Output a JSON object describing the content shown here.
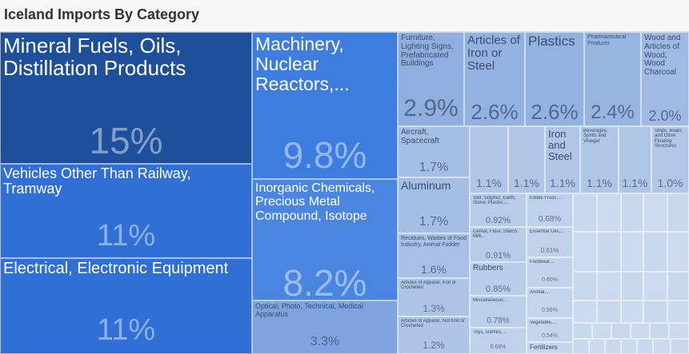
{
  "title": "Iceland Imports By Category",
  "chart_data": {
    "type": "treemap",
    "title": "Iceland Imports By Category",
    "unit": "% of total imports",
    "tiles": [
      {
        "label": "Mineral Fuels, Oils, Distillation Products",
        "pct": "15%",
        "value": 15,
        "color": "#1e4f9a"
      },
      {
        "label": "Vehicles Other Than Railway, Tramway",
        "pct": "11%",
        "value": 11,
        "color": "#2f6fd6"
      },
      {
        "label": "Electrical, Electronic Equipment",
        "pct": "11%",
        "value": 11,
        "color": "#2f6fd6"
      },
      {
        "label": "Machinery, Nuclear Reactors,...",
        "pct": "9.8%",
        "value": 9.8,
        "color": "#3d7de0"
      },
      {
        "label": "Inorganic Chemicals, Precious Metal Compound, Isotope",
        "pct": "8.2%",
        "value": 8.2,
        "color": "#4a86e0"
      },
      {
        "label": "Optical, Photo, Technical, Medical Apparatus",
        "pct": "3.3%",
        "value": 3.3,
        "color": "#7ea3df"
      },
      {
        "label": "Furniture, Lighting Signs, Prefabricated Buildings",
        "pct": "2.9%",
        "value": 2.9,
        "color": "#90afe0"
      },
      {
        "label": "Articles of Iron or Steel",
        "pct": "2.6%",
        "value": 2.6,
        "color": "#93b2e2"
      },
      {
        "label": "Plastics",
        "pct": "2.6%",
        "value": 2.6,
        "color": "#93b2e2"
      },
      {
        "label": "Pharmaceutical Products",
        "pct": "2.4%",
        "value": 2.4,
        "color": "#98b5e2"
      },
      {
        "label": "Wood and Articles of Wood, Wood Charcoal",
        "pct": "2.0%",
        "value": 2.0,
        "color": "#9fbae3"
      },
      {
        "label": "Aircraft, Spacecraft",
        "pct": "1.7%",
        "value": 1.7,
        "color": "#a5bee4"
      },
      {
        "label": "Aluminum",
        "pct": "1.7%",
        "value": 1.7,
        "color": "#a5bee4"
      },
      {
        "label": "",
        "pct": "1.1%",
        "value": 1.1,
        "color": "#b0c6e7"
      },
      {
        "label": "",
        "pct": "1.1%",
        "value": 1.1,
        "color": "#b0c6e7"
      },
      {
        "label": "Iron and Steel",
        "pct": "1.1%",
        "value": 1.1,
        "color": "#b0c6e7"
      },
      {
        "label": "Beverages, Spirits and Vinegar",
        "pct": "1.1%",
        "value": 1.1,
        "color": "#b0c6e7"
      },
      {
        "label": "",
        "pct": "1.1%",
        "value": 1.1,
        "color": "#b0c6e7"
      },
      {
        "label": "Ships, Boats, and Other Floating Structures",
        "pct": "1.0%",
        "value": 1.0,
        "color": "#b3c8e8"
      },
      {
        "label": "Residues, Wastes of Food Industry, Animal Fodder",
        "pct": "1.6%",
        "value": 1.6,
        "color": "#a8c0e5"
      },
      {
        "label": "Articles of Apparel, Knit or Crocheted",
        "pct": "1.3%",
        "value": 1.3,
        "color": "#adc4e6"
      },
      {
        "label": "Articles of Apparel, Not Knit or Crocheted",
        "pct": "1.2%",
        "value": 1.2,
        "color": "#aec5e7"
      },
      {
        "label": "Salt, Sulphur, Earth, Stone, Plaster,...",
        "pct": "0.92%",
        "value": 0.92,
        "color": "#b8cce9"
      },
      {
        "label": "Cereal, Flour, Starch, Milk...",
        "pct": "0.91%",
        "value": 0.91,
        "color": "#b8cce9"
      },
      {
        "label": "Rubbers",
        "pct": "0.85%",
        "value": 0.85,
        "color": "#bacdea"
      },
      {
        "label": "Miscellaneous...",
        "pct": "0.78%",
        "value": 0.78,
        "color": "#bccfea"
      },
      {
        "label": "Toys, Games,...",
        "pct": "0.68%",
        "value": 0.68,
        "color": "#bfd1eb"
      },
      {
        "label": "Edible Fruits,...",
        "pct": "0.68%",
        "value": 0.68,
        "color": "#bfd1eb"
      },
      {
        "label": "Essential Oils,...",
        "pct": "0.61%",
        "value": 0.61,
        "color": "#c1d3eb"
      },
      {
        "label": "Footwear,...",
        "pct": "0.60%",
        "value": 0.6,
        "color": "#c2d3ec"
      },
      {
        "label": "Animal,...",
        "pct": "0.56%",
        "value": 0.56,
        "color": "#c3d4ec"
      },
      {
        "label": "Vegetable,...",
        "pct": "0.54%",
        "value": 0.54,
        "color": "#c4d5ec"
      },
      {
        "label": "Fertilizers",
        "pct": "",
        "value": null,
        "color": "#c5d6ed"
      }
    ]
  }
}
